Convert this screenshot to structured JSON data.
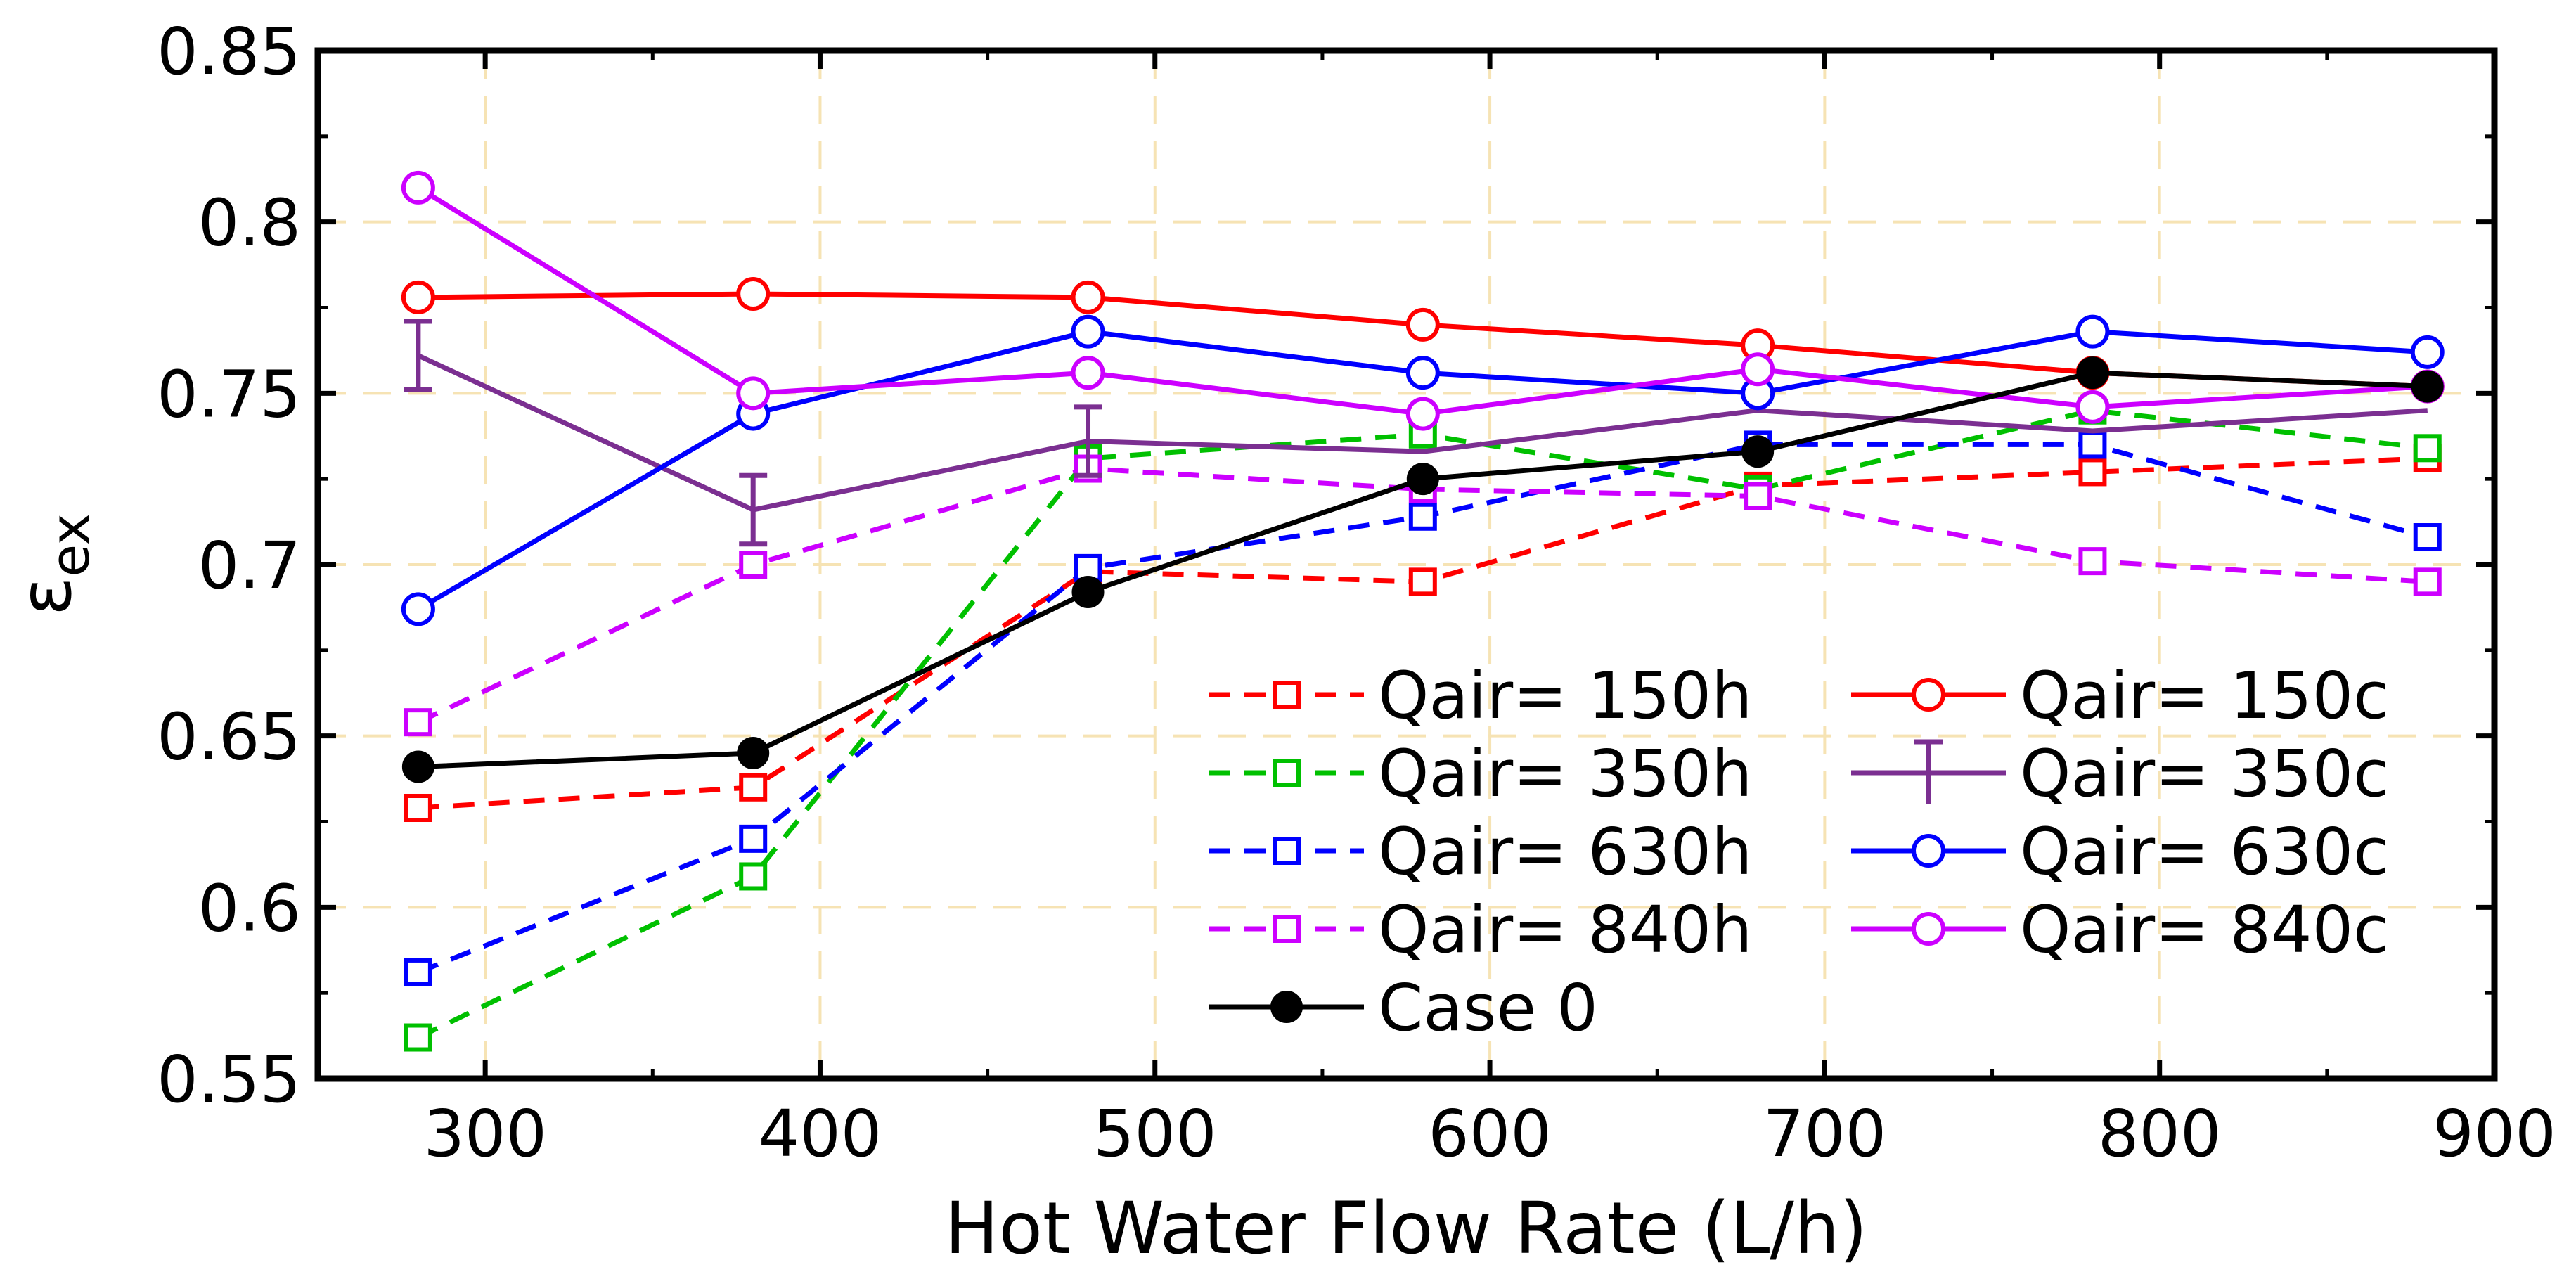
{
  "chart_data": {
    "type": "line",
    "title": "",
    "xlabel": "Hot Water Flow Rate (L/h)",
    "ylabel": "ε",
    "ylabel_sub": "ex",
    "xlim": [
      250,
      900
    ],
    "ylim": [
      0.55,
      0.85
    ],
    "xticks": [
      300,
      400,
      500,
      600,
      700,
      800,
      900
    ],
    "yticks": [
      0.55,
      0.6,
      0.65,
      0.7,
      0.75,
      0.8,
      0.85
    ],
    "xtick_labels": [
      "300",
      "400",
      "500",
      "600",
      "700",
      "800",
      "900"
    ],
    "ytick_labels": [
      "0.55",
      "0.6",
      "0.65",
      "0.7",
      "0.75",
      "0.8",
      "0.85"
    ],
    "grid": true,
    "legend_position": "bottom-right",
    "x": [
      280,
      380,
      480,
      580,
      680,
      780,
      880
    ],
    "series": [
      {
        "name": "Qair= 150h",
        "color": "#ff0000",
        "dash": "dashed",
        "marker": "square-open",
        "values": [
          0.629,
          0.635,
          0.698,
          0.695,
          0.723,
          0.727,
          0.731
        ]
      },
      {
        "name": "Qair= 350h",
        "color": "#00c000",
        "dash": "dashed",
        "marker": "square-open",
        "values": [
          0.562,
          0.609,
          0.731,
          0.738,
          0.722,
          0.745,
          0.734
        ]
      },
      {
        "name": "Qair= 630h",
        "color": "#0000ff",
        "dash": "dashed",
        "marker": "square-open",
        "values": [
          0.581,
          0.62,
          0.699,
          0.714,
          0.735,
          0.735,
          0.708
        ]
      },
      {
        "name": "Qair= 840h",
        "color": "#cc00ff",
        "dash": "dashed",
        "marker": "square-open",
        "values": [
          0.654,
          0.7,
          0.728,
          0.722,
          0.72,
          0.701,
          0.695
        ]
      },
      {
        "name": "Case 0",
        "color": "#000000",
        "dash": "solid",
        "marker": "circle-filled",
        "values": [
          0.641,
          0.645,
          0.692,
          0.725,
          0.733,
          0.756,
          0.752
        ]
      },
      {
        "name": "Qair= 150c",
        "color": "#ff0000",
        "dash": "solid",
        "marker": "circle-open",
        "values": [
          0.778,
          0.779,
          0.778,
          0.77,
          0.764,
          0.756,
          0.752
        ]
      },
      {
        "name": "Qair= 350c",
        "color": "#7b2f91",
        "dash": "solid",
        "marker": "errorbar",
        "values": [
          0.761,
          0.716,
          0.736,
          0.733,
          0.745,
          0.739,
          0.745
        ],
        "errors": [
          0.01,
          0.01,
          0.01,
          0.0,
          0.0,
          0.0,
          0.0
        ]
      },
      {
        "name": "Qair= 630c",
        "color": "#0000ff",
        "dash": "solid",
        "marker": "circle-open",
        "values": [
          0.687,
          0.744,
          0.768,
          0.756,
          0.75,
          0.768,
          0.762
        ]
      },
      {
        "name": "Qair= 840c",
        "color": "#cc00ff",
        "dash": "solid",
        "marker": "circle-open",
        "values": [
          0.81,
          0.75,
          0.756,
          0.744,
          0.757,
          0.746,
          0.752
        ]
      }
    ],
    "legend_order": [
      0,
      1,
      2,
      3,
      4,
      5,
      6,
      7,
      8
    ]
  }
}
